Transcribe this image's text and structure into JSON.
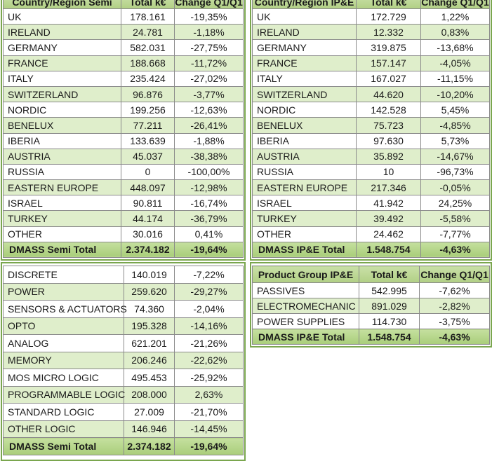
{
  "semi_region": {
    "headers": [
      "Country/Region Semi",
      "Total k€",
      "Change Q1/Q1"
    ],
    "rows": [
      [
        "UK",
        "178.161",
        "-19,35%"
      ],
      [
        "IRELAND",
        "24.781",
        "-1,18%"
      ],
      [
        "GERMANY",
        "582.031",
        "-27,75%"
      ],
      [
        "FRANCE",
        "188.668",
        "-11,72%"
      ],
      [
        "ITALY",
        "235.424",
        "-27,02%"
      ],
      [
        "SWITZERLAND",
        "96.876",
        "-3,77%"
      ],
      [
        "NORDIC",
        "199.256",
        "-12,63%"
      ],
      [
        "BENELUX",
        "77.211",
        "-26,41%"
      ],
      [
        "IBERIA",
        "133.639",
        "-1,88%"
      ],
      [
        "AUSTRIA",
        "45.037",
        "-38,38%"
      ],
      [
        "RUSSIA",
        "0",
        "-100,00%"
      ],
      [
        "EASTERN EUROPE",
        "448.097",
        "-12,98%"
      ],
      [
        "ISRAEL",
        "90.811",
        "-16,74%"
      ],
      [
        "TURKEY",
        "44.174",
        "-36,79%"
      ],
      [
        "OTHER",
        "30.016",
        "0,41%"
      ]
    ],
    "total": [
      "DMASS Semi Total",
      "2.374.182",
      "-19,64%"
    ]
  },
  "ipe_region": {
    "headers": [
      "Country/Region IP&E",
      "Total k€",
      "Change Q1/Q1"
    ],
    "rows": [
      [
        "UK",
        "172.729",
        "1,22%"
      ],
      [
        "IRELAND",
        "12.332",
        "0,83%"
      ],
      [
        "GERMANY",
        "319.875",
        "-13,68%"
      ],
      [
        "FRANCE",
        "157.147",
        "-4,05%"
      ],
      [
        "ITALY",
        "167.027",
        "-11,15%"
      ],
      [
        "SWITZERLAND",
        "44.620",
        "-10,20%"
      ],
      [
        "NORDIC",
        "142.528",
        "5,45%"
      ],
      [
        "BENELUX",
        "75.723",
        "-4,85%"
      ],
      [
        "IBERIA",
        "97.630",
        "5,73%"
      ],
      [
        "AUSTRIA",
        "35.892",
        "-14,67%"
      ],
      [
        "RUSSIA",
        "10",
        "-96,73%"
      ],
      [
        "EASTERN EUROPE",
        "217.346",
        "-0,05%"
      ],
      [
        "ISRAEL",
        "41.942",
        "24,25%"
      ],
      [
        "TURKEY",
        "39.492",
        "-5,58%"
      ],
      [
        "OTHER",
        "24.462",
        "-7,77%"
      ]
    ],
    "total": [
      "DMASS IP&E Total",
      "1.548.754",
      "-4,63%"
    ]
  },
  "semi_product": {
    "rows": [
      [
        "DISCRETE",
        "140.019",
        "-7,22%"
      ],
      [
        "POWER",
        "259.620",
        "-29,27%"
      ],
      [
        "SENSORS & ACTUATORS",
        "74.360",
        "-2,04%"
      ],
      [
        "OPTO",
        "195.328",
        "-14,16%"
      ],
      [
        "ANALOG",
        "621.201",
        "-21,26%"
      ],
      [
        "MEMORY",
        "206.246",
        "-22,62%"
      ],
      [
        "MOS MICRO LOGIC",
        "495.453",
        "-25,92%"
      ],
      [
        "PROGRAMMABLE LOGIC",
        "208.000",
        "2,63%"
      ],
      [
        "STANDARD LOGIC",
        "27.009",
        "-21,70%"
      ],
      [
        "OTHER LOGIC",
        "146.946",
        "-14,45%"
      ]
    ],
    "total": [
      "DMASS Semi Total",
      "2.374.182",
      "-19,64%"
    ]
  },
  "ipe_product": {
    "headers": [
      "Product Group IP&E",
      "Total k€",
      "Change Q1/Q1"
    ],
    "rows": [
      [
        "PASSIVES",
        "542.995",
        "-7,62%"
      ],
      [
        "ELECTROMECHANIC",
        "891.029",
        "-2,82%"
      ],
      [
        "POWER SUPPLIES",
        "114.730",
        "-3,75%"
      ]
    ],
    "total": [
      "DMASS IP&E Total",
      "1.548.754",
      "-4,63%"
    ]
  }
}
